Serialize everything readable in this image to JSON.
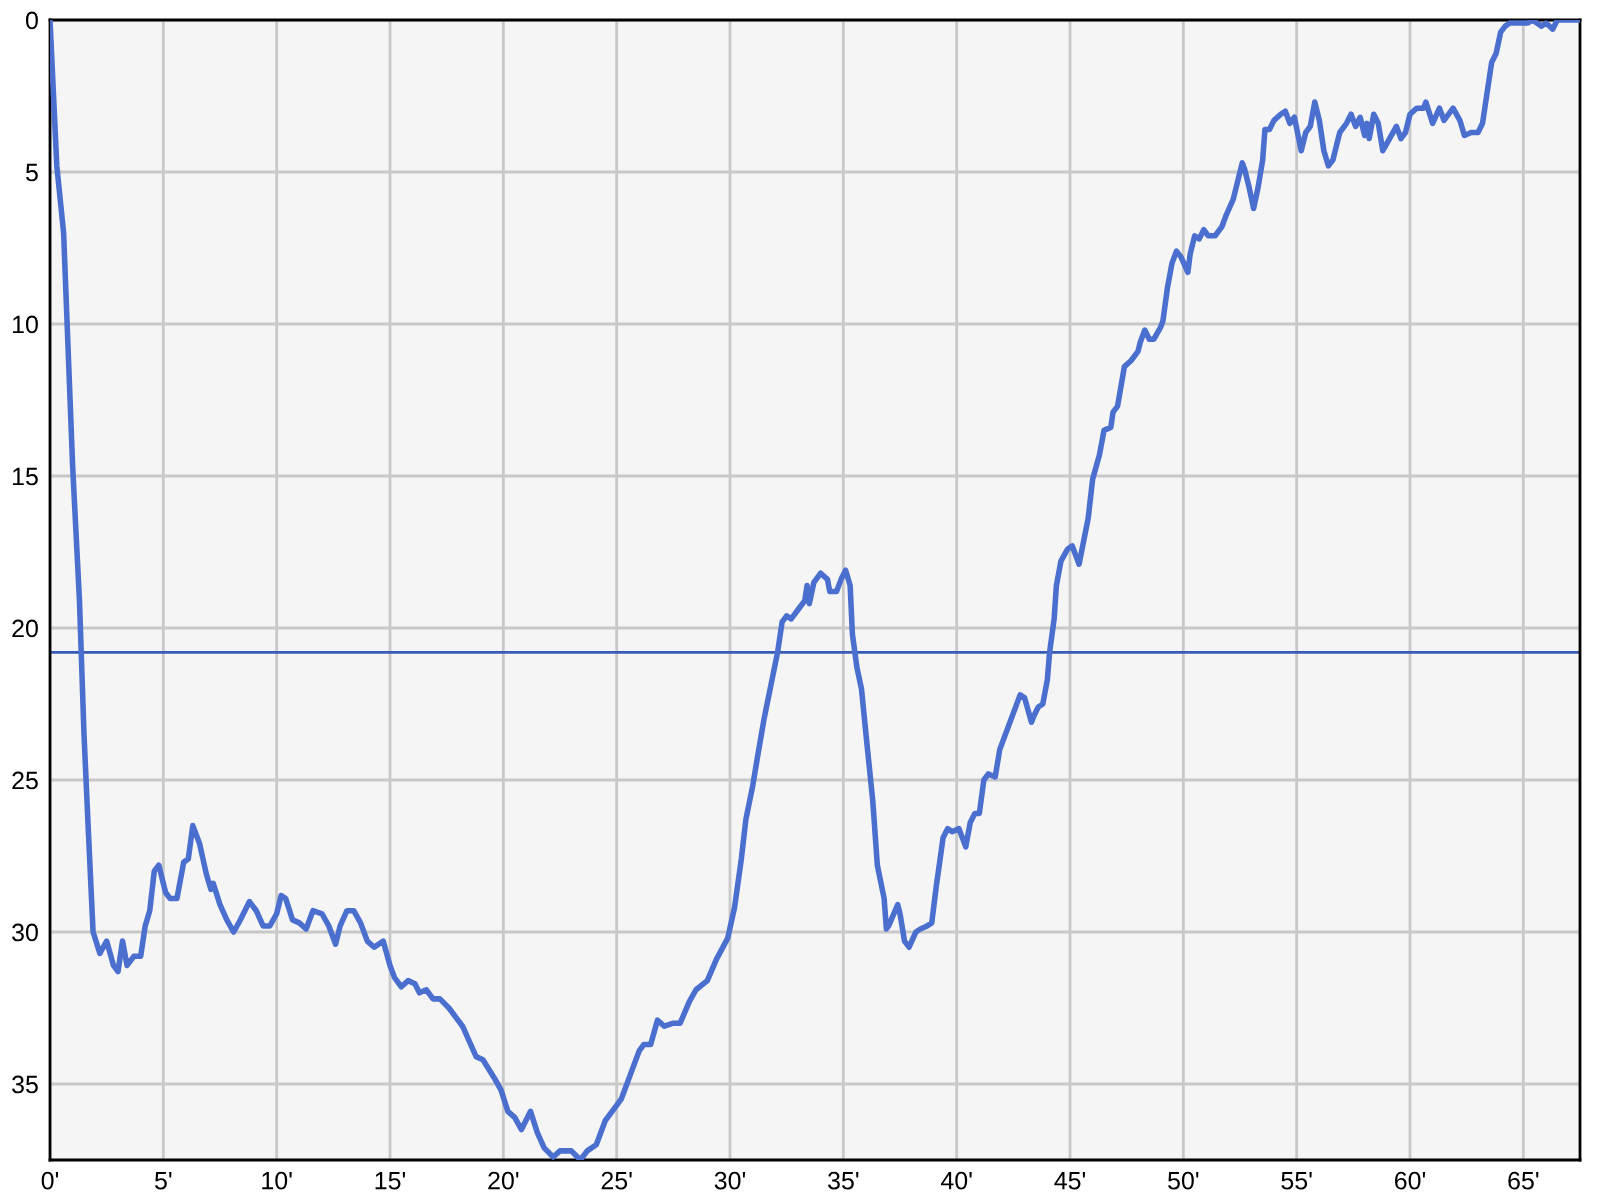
{
  "chart_data": {
    "type": "line",
    "color": "#4a6fcf",
    "x": [
      0,
      0.3,
      0.6,
      1.0,
      1.3,
      1.5,
      1.7,
      1.9,
      2.2,
      2.5,
      2.8,
      3.0,
      3.2,
      3.4,
      3.7,
      4.0,
      4.2,
      4.4,
      4.6,
      4.8,
      5.1,
      5.3,
      5.6,
      5.9,
      6.1,
      6.3,
      6.6,
      6.9,
      7.1,
      7.2,
      7.5,
      7.8,
      8.1,
      8.4,
      8.8,
      9.1,
      9.4,
      9.7,
      10.0,
      10.2,
      10.4,
      10.7,
      11.0,
      11.3,
      11.6,
      12.0,
      12.3,
      12.6,
      12.8,
      13.1,
      13.4,
      13.7,
      14.0,
      14.3,
      14.7,
      15.0,
      15.2,
      15.5,
      15.8,
      16.1,
      16.3,
      16.6,
      16.9,
      17.2,
      17.6,
      17.9,
      18.2,
      18.5,
      18.8,
      19.1,
      19.6,
      19.9,
      20.2,
      20.5,
      20.8,
      21.2,
      21.5,
      21.8,
      22.2,
      22.5,
      23.0,
      23.4,
      23.7,
      24.1,
      24.5,
      24.9,
      25.2,
      25.6,
      26.0,
      26.2,
      26.5,
      26.8,
      27.1,
      27.5,
      27.8,
      28.2,
      28.5,
      29.0,
      29.4,
      29.9,
      30.2,
      30.5,
      30.7,
      31.0,
      31.2,
      31.5,
      31.8,
      32.1,
      32.3,
      32.5,
      32.7,
      33.0,
      33.3,
      33.4,
      33.5,
      33.7,
      34.0,
      34.3,
      34.4,
      34.7,
      34.9,
      35.1,
      35.3,
      35.4,
      35.6,
      35.8,
      36.0,
      36.3,
      36.5,
      36.8,
      36.9,
      37.0,
      37.4,
      37.5,
      37.7,
      37.9,
      38.2,
      38.4,
      38.7,
      38.9,
      39.1,
      39.4,
      39.6,
      39.8,
      40.1,
      40.4,
      40.6,
      40.8,
      41.0,
      41.2,
      41.4,
      41.7,
      41.9,
      42.4,
      42.8,
      43.0,
      43.3,
      43.4,
      43.6,
      43.8,
      44.0,
      44.1,
      44.3,
      44.4,
      44.6,
      44.9,
      45.1,
      45.4,
      45.8,
      46.0,
      46.3,
      46.5,
      46.8,
      46.9,
      47.1,
      47.4,
      47.7,
      48.0,
      48.1,
      48.3,
      48.5,
      48.7,
      49.0,
      49.1,
      49.3,
      49.5,
      49.7,
      49.9,
      50.2,
      50.3,
      50.5,
      50.7,
      50.9,
      51.1,
      51.4,
      51.7,
      51.9,
      52.2,
      52.4,
      52.6,
      52.7,
      52.9,
      53.1,
      53.3,
      53.5,
      53.6,
      53.8,
      54.0,
      54.3,
      54.5,
      54.7,
      54.9,
      55.2,
      55.4,
      55.6,
      55.8,
      56.0,
      56.2,
      56.4,
      56.6,
      56.9,
      57.2,
      57.4,
      57.6,
      57.8,
      58.0,
      58.1,
      58.2,
      58.4,
      58.6,
      58.8,
      59.1,
      59.4,
      59.6,
      59.8,
      60.0,
      60.3,
      60.6,
      60.7,
      61.0,
      61.3,
      61.5,
      61.9,
      62.2,
      62.4,
      62.7,
      63.0,
      63.2,
      63.4,
      63.6,
      63.8,
      64.0,
      64.2,
      64.4,
      64.7,
      65.2,
      65.4,
      65.8,
      66.0,
      66.3,
      66.5,
      66.9,
      67.5
    ],
    "values": [
      0,
      4.8,
      7.0,
      14.7,
      19.1,
      23.5,
      26.8,
      30.0,
      30.7,
      30.3,
      31.1,
      31.3,
      30.3,
      31.1,
      30.8,
      30.8,
      29.8,
      29.3,
      28.0,
      27.8,
      28.7,
      28.9,
      28.9,
      27.7,
      27.6,
      26.5,
      27.1,
      28.1,
      28.6,
      28.4,
      29.1,
      29.6,
      30.0,
      29.6,
      29.0,
      29.3,
      29.8,
      29.8,
      29.4,
      28.8,
      28.9,
      29.6,
      29.7,
      29.9,
      29.3,
      29.4,
      29.8,
      30.4,
      29.8,
      29.3,
      29.3,
      29.7,
      30.3,
      30.5,
      30.3,
      31.1,
      31.5,
      31.8,
      31.6,
      31.7,
      32.0,
      31.9,
      32.2,
      32.2,
      32.5,
      32.8,
      33.1,
      33.6,
      34.1,
      34.2,
      34.8,
      35.2,
      35.9,
      36.1,
      36.5,
      35.9,
      36.6,
      37.1,
      37.4,
      37.2,
      37.2,
      37.5,
      37.2,
      37.0,
      36.2,
      35.8,
      35.5,
      34.7,
      33.9,
      33.7,
      33.7,
      32.9,
      33.1,
      33.0,
      33.0,
      32.3,
      31.9,
      31.6,
      30.9,
      30.2,
      29.2,
      27.6,
      26.3,
      25.2,
      24.3,
      23.0,
      21.9,
      20.8,
      19.8,
      19.6,
      19.7,
      19.4,
      19.1,
      18.6,
      19.2,
      18.5,
      18.2,
      18.4,
      18.8,
      18.8,
      18.4,
      18.1,
      18.6,
      20.2,
      21.3,
      22.0,
      23.5,
      25.7,
      27.8,
      28.9,
      29.9,
      29.8,
      29.1,
      29.4,
      30.3,
      30.5,
      30.0,
      29.9,
      29.8,
      29.7,
      28.5,
      26.9,
      26.6,
      26.7,
      26.6,
      27.2,
      26.4,
      26.1,
      26.1,
      25.0,
      24.8,
      24.9,
      24.0,
      23.0,
      22.2,
      22.3,
      23.1,
      22.9,
      22.6,
      22.5,
      21.7,
      20.8,
      19.7,
      18.6,
      17.8,
      17.4,
      17.3,
      17.9,
      16.4,
      15.1,
      14.3,
      13.5,
      13.4,
      12.9,
      12.7,
      11.4,
      11.2,
      10.9,
      10.6,
      10.2,
      10.5,
      10.5,
      10.1,
      9.9,
      8.8,
      8.0,
      7.6,
      7.8,
      8.3,
      7.7,
      7.1,
      7.2,
      6.9,
      7.1,
      7.1,
      6.8,
      6.4,
      5.9,
      5.3,
      4.7,
      4.9,
      5.5,
      6.2,
      5.5,
      4.6,
      3.6,
      3.6,
      3.3,
      3.1,
      3.0,
      3.4,
      3.2,
      4.3,
      3.7,
      3.5,
      2.7,
      3.3,
      4.3,
      4.8,
      4.6,
      3.7,
      3.4,
      3.1,
      3.5,
      3.2,
      3.8,
      3.4,
      3.9,
      3.1,
      3.4,
      4.3,
      3.9,
      3.5,
      3.9,
      3.7,
      3.1,
      2.9,
      2.9,
      2.7,
      3.4,
      2.9,
      3.3,
      2.9,
      3.3,
      3.8,
      3.7,
      3.7,
      3.4,
      2.4,
      1.4,
      1.1,
      0.4,
      0.2,
      0.1,
      0.1,
      0.1,
      0,
      0.2,
      0.1,
      0.3,
      0,
      0,
      0
    ],
    "xlim": [
      0,
      67.5
    ],
    "ylim": [
      37.5,
      0
    ],
    "xticks": [
      {
        "value": 0,
        "label": "0'"
      },
      {
        "value": 5,
        "label": "5'"
      },
      {
        "value": 10,
        "label": "10'"
      },
      {
        "value": 15,
        "label": "15'"
      },
      {
        "value": 20,
        "label": "20'"
      },
      {
        "value": 25,
        "label": "25'"
      },
      {
        "value": 30,
        "label": "30'"
      },
      {
        "value": 35,
        "label": "35'"
      },
      {
        "value": 40,
        "label": "40'"
      },
      {
        "value": 45,
        "label": "45'"
      },
      {
        "value": 50,
        "label": "50'"
      },
      {
        "value": 55,
        "label": "55'"
      },
      {
        "value": 60,
        "label": "60'"
      },
      {
        "value": 65,
        "label": "65'"
      }
    ],
    "yticks": [
      0,
      5,
      10,
      15,
      20,
      25,
      30,
      35
    ],
    "ref_lines": [
      {
        "axis": "y",
        "value": 20.8,
        "color": "#3a5bb5"
      }
    ],
    "grid": true
  }
}
